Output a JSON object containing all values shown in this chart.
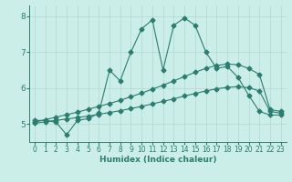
{
  "xlabel": "Humidex (Indice chaleur)",
  "background_color": "#cceee8",
  "line_color": "#2a7d6f",
  "grid_color": "#b0d8d2",
  "xlim": [
    -0.5,
    23.5
  ],
  "ylim": [
    4.5,
    8.3
  ],
  "yticks": [
    5,
    6,
    7,
    8
  ],
  "xticks": [
    0,
    1,
    2,
    3,
    4,
    5,
    6,
    7,
    8,
    9,
    10,
    11,
    12,
    13,
    14,
    15,
    16,
    17,
    18,
    19,
    20,
    21,
    22,
    23
  ],
  "s1_x": [
    0,
    1,
    2,
    3,
    4,
    5,
    6,
    7,
    8,
    9,
    10,
    11,
    12,
    13,
    14,
    15,
    16,
    17,
    18,
    19,
    20,
    21,
    22,
    23
  ],
  "s1_y": [
    5.1,
    5.1,
    5.05,
    4.7,
    5.1,
    5.15,
    5.3,
    6.5,
    6.2,
    7.0,
    7.65,
    7.9,
    6.5,
    7.75,
    7.95,
    7.75,
    7.0,
    6.55,
    6.6,
    6.3,
    5.8,
    5.35,
    5.25,
    5.25
  ],
  "s2_x": [
    0,
    1,
    2,
    3,
    4,
    5,
    6,
    7,
    8,
    9,
    10,
    11,
    12,
    13,
    14,
    15,
    16,
    17,
    18,
    19,
    20,
    21,
    22,
    23
  ],
  "s2_y": [
    5.05,
    5.12,
    5.19,
    5.26,
    5.33,
    5.41,
    5.49,
    5.57,
    5.66,
    5.76,
    5.86,
    5.97,
    6.08,
    6.2,
    6.32,
    6.44,
    6.55,
    6.63,
    6.67,
    6.65,
    6.55,
    6.38,
    5.4,
    5.35
  ],
  "s3_x": [
    0,
    1,
    2,
    3,
    4,
    5,
    6,
    7,
    8,
    9,
    10,
    11,
    12,
    13,
    14,
    15,
    16,
    17,
    18,
    19,
    20,
    21,
    22,
    23
  ],
  "s3_y": [
    5.02,
    5.06,
    5.1,
    5.14,
    5.18,
    5.22,
    5.27,
    5.32,
    5.37,
    5.43,
    5.49,
    5.56,
    5.63,
    5.7,
    5.78,
    5.85,
    5.92,
    5.98,
    6.02,
    6.04,
    6.01,
    5.92,
    5.35,
    5.3
  ]
}
